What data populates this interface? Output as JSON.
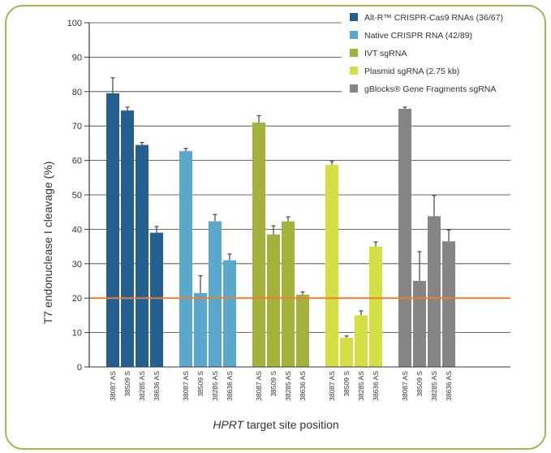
{
  "chart_data": {
    "type": "bar",
    "ylabel": "T7 endonuclease I cleavage (%)",
    "xlabel_italic": "HPRT",
    "xlabel_rest": " target site position",
    "ylim": [
      0,
      100
    ],
    "yticks": [
      0,
      10,
      20,
      30,
      40,
      50,
      60,
      70,
      80,
      90,
      100
    ],
    "grid": true,
    "legend_position": "top-right",
    "threshold": {
      "value": 20,
      "color": "#ef7f2e"
    },
    "series": [
      {
        "name": "Alt-R™ CRISPR-Cas9 RNAs (36/67)",
        "color": "#245f8f",
        "categories": [
          "38087 AS",
          "38509 S",
          "38285 AS",
          "38636 AS"
        ],
        "values": [
          79.5,
          74.5,
          64.5,
          39
        ],
        "errors": [
          4.5,
          1,
          0.7,
          1.8
        ]
      },
      {
        "name": "Native CRISPR RNA (42/89)",
        "color": "#5aa8ce",
        "categories": [
          "38087 AS",
          "38509 S",
          "38285 AS",
          "38636 AS"
        ],
        "values": [
          62.7,
          21.5,
          42.3,
          31
        ],
        "errors": [
          0.8,
          5,
          2,
          1.8
        ]
      },
      {
        "name": "IVT sgRNA",
        "color": "#a4b13a",
        "categories": [
          "38087 AS",
          "38509 S",
          "38285 AS",
          "38636 AS"
        ],
        "values": [
          71,
          38.5,
          42.3,
          21
        ],
        "errors": [
          2,
          2.5,
          1.3,
          0.8
        ]
      },
      {
        "name": "Plasmid sgRNA (2.75 kb)",
        "color": "#d4df45",
        "categories": [
          "38087 AS",
          "38509 S",
          "38285 AS",
          "38636 AS"
        ],
        "values": [
          58.7,
          8.5,
          15,
          35
        ],
        "errors": [
          1,
          0.5,
          1.3,
          1.3
        ]
      },
      {
        "name": "gBlocks® Gene Fragments sgRNA",
        "color": "#858585",
        "categories": [
          "38087 AS",
          "38509 S",
          "38285 AS",
          "38636 AS"
        ],
        "values": [
          75,
          25,
          43.8,
          36.5
        ],
        "errors": [
          0.5,
          8.5,
          6,
          3.3
        ]
      }
    ]
  }
}
